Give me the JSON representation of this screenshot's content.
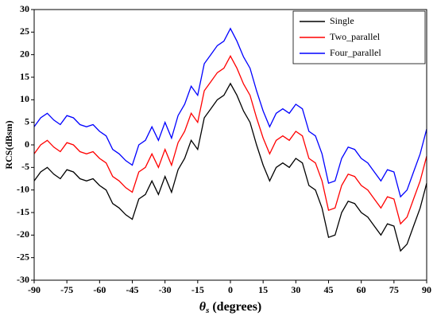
{
  "chart_data": {
    "type": "line",
    "ylabel": "RCS(dBsm)",
    "xlabel_symbol": "θ",
    "xlabel_sub": "s",
    "xlabel_rest": "(degrees)",
    "x": [
      -90,
      -87,
      -84,
      -81,
      -78,
      -75,
      -72,
      -69,
      -66,
      -63,
      -60,
      -57,
      -54,
      -51,
      -48,
      -45,
      -42,
      -39,
      -36,
      -33,
      -30,
      -27,
      -24,
      -21,
      -18,
      -15,
      -12,
      -9,
      -6,
      -3,
      0,
      3,
      6,
      9,
      12,
      15,
      18,
      21,
      24,
      27,
      30,
      33,
      36,
      39,
      42,
      45,
      48,
      51,
      54,
      57,
      60,
      63,
      66,
      69,
      72,
      75,
      78,
      81,
      84,
      87,
      90
    ],
    "series": [
      {
        "name": "Single",
        "color": "#000000",
        "values": [
          -8,
          -6,
          -5,
          -6.5,
          -7.5,
          -5.5,
          -6,
          -7.5,
          -8,
          -7.5,
          -9,
          -10,
          -13,
          -14,
          -15.5,
          -16.5,
          -12,
          -11,
          -8,
          -11,
          -7,
          -10.5,
          -5.5,
          -3,
          1,
          -1,
          6,
          8,
          10,
          11,
          13.6,
          11,
          7.5,
          5,
          0,
          -4.5,
          -8,
          -5,
          -4,
          -5,
          -3,
          -4,
          -9,
          -10,
          -14,
          -20.5,
          -20,
          -15,
          -12.5,
          -13,
          -15,
          -16,
          -18,
          -20,
          -17.5,
          -18,
          -23.5,
          -22,
          -18,
          -14,
          -8.5
        ]
      },
      {
        "name": "Two_parallel",
        "color": "#ff0000",
        "values": [
          -2,
          0,
          1,
          -0.5,
          -1.5,
          0.5,
          0,
          -1.5,
          -2,
          -1.5,
          -3,
          -4,
          -7,
          -8,
          -9.5,
          -10.5,
          -6,
          -5,
          -2,
          -5,
          -1,
          -4.5,
          0.5,
          3,
          7,
          5,
          12,
          14,
          16,
          17,
          19.7,
          17,
          13.5,
          11,
          6,
          1.5,
          -2,
          1,
          2,
          1,
          3,
          2,
          -3,
          -4,
          -8,
          -14.5,
          -14,
          -9,
          -6.5,
          -7,
          -9,
          -10,
          -12,
          -14,
          -11.5,
          -12,
          -17.5,
          -16,
          -12,
          -8,
          -2.5
        ]
      },
      {
        "name": "Four_parallel",
        "color": "#0000ff",
        "values": [
          4,
          6,
          7,
          5.5,
          4.5,
          6.5,
          6,
          4.5,
          4,
          4.5,
          3,
          2,
          -1,
          -2,
          -3.5,
          -4.5,
          0,
          1,
          4,
          1,
          5,
          1.5,
          6.5,
          9,
          13,
          11,
          18,
          20,
          22,
          23,
          25.8,
          23,
          19.5,
          17,
          12,
          7.5,
          4,
          7,
          8,
          7,
          9,
          8,
          3,
          2,
          -2,
          -8.5,
          -8,
          -3,
          -0.5,
          -1,
          -3,
          -4,
          -6,
          -8,
          -5.5,
          -6,
          -11.5,
          -10,
          -6,
          -2,
          3.5
        ]
      }
    ],
    "xlim": [
      -90,
      90
    ],
    "xticks": [
      -90,
      -75,
      -60,
      -45,
      -30,
      -15,
      0,
      15,
      30,
      45,
      60,
      75,
      90
    ],
    "ylim": [
      -30,
      30
    ],
    "yticks": [
      -30,
      -25,
      -20,
      -15,
      -10,
      -5,
      0,
      5,
      10,
      15,
      20,
      25,
      30
    ],
    "legend": "upper right"
  }
}
